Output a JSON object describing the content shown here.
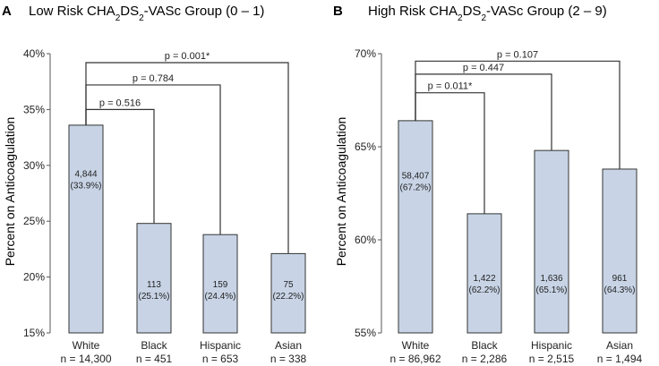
{
  "chart_data": [
    {
      "panel_label": "A",
      "title_prefix": "Low Risk CHA",
      "title_sub1": "2",
      "title_mid": "DS",
      "title_sub2": "2",
      "title_suffix": "-VASc Group (0 – 1)",
      "type": "bar",
      "ylabel": "Percent on Anticoagulation",
      "ylim": [
        15,
        40
      ],
      "yticks": [
        "15%",
        "20%",
        "25%",
        "30%",
        "35%",
        "40%"
      ],
      "ytick_values": [
        15,
        20,
        25,
        30,
        35,
        40
      ],
      "categories": [
        "White",
        "Black",
        "Hispanic",
        "Asian"
      ],
      "n_labels": [
        "n = 14,300",
        "n = 451",
        "n = 653",
        "n = 338"
      ],
      "values": [
        33.6,
        24.8,
        23.8,
        22.1
      ],
      "counts": [
        "4,844",
        "113",
        "159",
        "75"
      ],
      "pct_labels": [
        "(33.9%)",
        "(25.1%)",
        "(24.4%)",
        "(22.2%)"
      ],
      "label_y": [
        29.0,
        19.1,
        19.1,
        19.1
      ],
      "comparisons": [
        {
          "from": 0,
          "to": 1,
          "label": "p = 0.516",
          "y": 35.0
        },
        {
          "from": 0,
          "to": 2,
          "label": "p = 0.784",
          "y": 37.2
        },
        {
          "from": 0,
          "to": 3,
          "label": "p = 0.001*",
          "y": 39.2
        }
      ],
      "colors": {
        "bar_fill": "#c8d4e6",
        "bar_stroke": "#333333"
      }
    },
    {
      "panel_label": "B",
      "title_prefix": "High Risk CHA",
      "title_sub1": "2",
      "title_mid": "DS",
      "title_sub2": "2",
      "title_suffix": "-VASc Group (2 – 9)",
      "type": "bar",
      "ylabel": "Percent on Anticoagulation",
      "ylim": [
        55,
        70
      ],
      "yticks": [
        "55%",
        "60%",
        "65%",
        "70%"
      ],
      "ytick_values": [
        55,
        60,
        65,
        70
      ],
      "categories": [
        "White",
        "Black",
        "Hispanic",
        "Asian"
      ],
      "n_labels": [
        "n = 86,962",
        "n = 2,286",
        "n = 2,515",
        "n = 1,494"
      ],
      "values": [
        66.4,
        61.4,
        64.8,
        63.8
      ],
      "counts": [
        "58,407",
        "1,422",
        "1,636",
        "961"
      ],
      "pct_labels": [
        "(67.2%)",
        "(62.2%)",
        "(65.1%)",
        "(64.3%)"
      ],
      "label_y": [
        63.3,
        57.8,
        57.8,
        57.8
      ],
      "comparisons": [
        {
          "from": 0,
          "to": 1,
          "label": "p = 0.011*",
          "y": 67.9
        },
        {
          "from": 0,
          "to": 2,
          "label": "p = 0.447",
          "y": 68.9
        },
        {
          "from": 0,
          "to": 3,
          "label": "p = 0.107",
          "y": 69.6
        }
      ],
      "colors": {
        "bar_fill": "#c8d4e6",
        "bar_stroke": "#333333"
      }
    }
  ]
}
